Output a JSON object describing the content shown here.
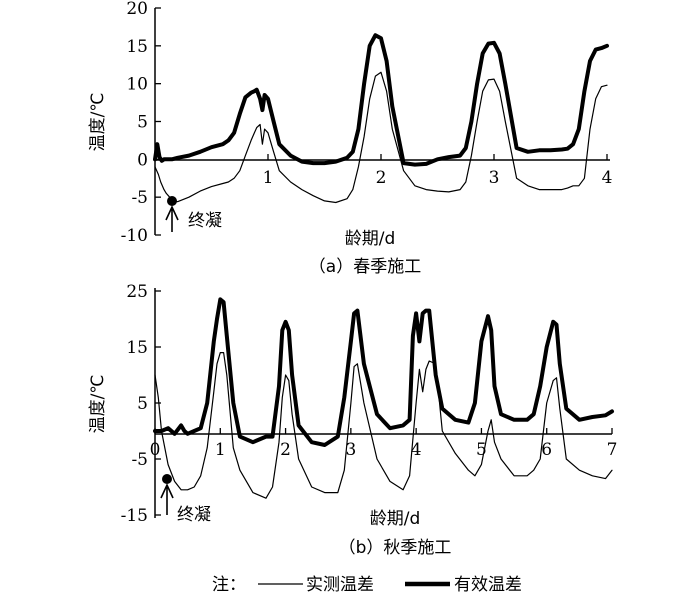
{
  "chart_data": [
    {
      "type": "line",
      "title": "（a）春季施工",
      "xlabel": "龄期/d",
      "ylabel": "温度/℃",
      "xlim": [
        0,
        4
      ],
      "ylim": [
        -10,
        20
      ],
      "x_ticks": [
        "1",
        "2",
        "3",
        "4"
      ],
      "y_ticks": [
        "20",
        "15",
        "10",
        "5",
        "0",
        "-5",
        "-10"
      ],
      "annotation": "终凝",
      "annotation_point": {
        "x": 0.12,
        "y": -5.3
      },
      "series": [
        {
          "name": "实测温差",
          "x": [
            0,
            0.03,
            0.05,
            0.08,
            0.1,
            0.13,
            0.16,
            0.2,
            0.3,
            0.4,
            0.5,
            0.6,
            0.65,
            0.7,
            0.75,
            0.8,
            0.85,
            0.88,
            0.9,
            0.93,
            0.95,
            0.97,
            1.0,
            1.05,
            1.1,
            1.2,
            1.3,
            1.4,
            1.5,
            1.6,
            1.7,
            1.75,
            1.8,
            1.85,
            1.9,
            1.95,
            2.0,
            2.05,
            2.1,
            2.2,
            2.3,
            2.4,
            2.5,
            2.6,
            2.7,
            2.75,
            2.8,
            2.85,
            2.9,
            2.95,
            3.0,
            3.05,
            3.1,
            3.2,
            3.3,
            3.4,
            3.5,
            3.6,
            3.65,
            3.7,
            3.75,
            3.8,
            3.85,
            3.9,
            3.95,
            4.0
          ],
          "y": [
            -1,
            -2,
            -3,
            -4,
            -4.5,
            -5,
            -5.5,
            -5.6,
            -5,
            -4.2,
            -3.6,
            -3.2,
            -3,
            -2.5,
            -1.5,
            0.5,
            2.5,
            3.5,
            4.2,
            4.6,
            2,
            4,
            3.5,
            1,
            -1.5,
            -3,
            -4,
            -4.8,
            -5.5,
            -5.7,
            -5.2,
            -4,
            -1,
            3,
            8,
            11,
            11.5,
            9,
            4,
            -1.5,
            -3.5,
            -4,
            -4.2,
            -4.3,
            -4,
            -3,
            0.5,
            5,
            9,
            10.5,
            10.6,
            9,
            5,
            -2.5,
            -3.5,
            -4,
            -4,
            -4,
            -3.8,
            -3.5,
            -3.5,
            -2.5,
            4,
            8,
            9.6,
            9.8
          ]
        },
        {
          "name": "有效温差",
          "x": [
            0,
            0.02,
            0.04,
            0.06,
            0.08,
            0.1,
            0.15,
            0.2,
            0.3,
            0.4,
            0.5,
            0.6,
            0.65,
            0.7,
            0.75,
            0.8,
            0.85,
            0.88,
            0.9,
            0.93,
            0.95,
            0.97,
            1.0,
            1.05,
            1.1,
            1.2,
            1.3,
            1.4,
            1.5,
            1.6,
            1.7,
            1.75,
            1.8,
            1.85,
            1.9,
            1.95,
            2.0,
            2.05,
            2.1,
            2.2,
            2.3,
            2.4,
            2.5,
            2.6,
            2.7,
            2.75,
            2.8,
            2.85,
            2.9,
            2.95,
            3.0,
            3.05,
            3.1,
            3.2,
            3.3,
            3.4,
            3.5,
            3.6,
            3.65,
            3.7,
            3.75,
            3.8,
            3.85,
            3.9,
            3.95,
            4.0
          ],
          "y": [
            0,
            2,
            0.3,
            -0.2,
            0,
            0,
            0,
            0.2,
            0.5,
            1,
            1.6,
            2,
            2.5,
            3.5,
            6,
            8.2,
            8.8,
            9,
            9.2,
            8,
            6.5,
            8.5,
            8,
            5,
            2,
            0.5,
            -0.3,
            -0.5,
            -0.5,
            -0.3,
            0.2,
            1,
            4,
            10,
            15,
            16.4,
            16,
            13,
            7,
            -0.5,
            -0.7,
            -0.6,
            0,
            0.3,
            0.5,
            1.5,
            5,
            10,
            14,
            15.3,
            15.4,
            14,
            10,
            1.5,
            1,
            1.2,
            1.2,
            1.3,
            1.4,
            2,
            4,
            9,
            13,
            14.5,
            14.7,
            15
          ]
        }
      ]
    },
    {
      "type": "line",
      "title": "（b）秋季施工",
      "xlabel": "龄期/d",
      "ylabel": "温度/℃",
      "xlim": [
        0,
        7
      ],
      "ylim": [
        -15,
        25
      ],
      "x_ticks": [
        "0",
        "1",
        "2",
        "3",
        "4",
        "5",
        "6",
        "7"
      ],
      "y_ticks": [
        "25",
        "15",
        "5",
        "-5",
        "-15"
      ],
      "annotation": "终凝",
      "annotation_point": {
        "x": 0.2,
        "y": -8
      },
      "series": [
        {
          "name": "实测温差",
          "x": [
            0,
            0.05,
            0.1,
            0.2,
            0.3,
            0.4,
            0.5,
            0.6,
            0.7,
            0.8,
            0.9,
            0.95,
            1.0,
            1.05,
            1.1,
            1.2,
            1.3,
            1.5,
            1.7,
            1.8,
            1.9,
            1.95,
            2.0,
            2.05,
            2.1,
            2.2,
            2.4,
            2.6,
            2.8,
            2.9,
            3.0,
            3.05,
            3.1,
            3.2,
            3.4,
            3.6,
            3.8,
            3.9,
            4.0,
            4.05,
            4.1,
            4.15,
            4.2,
            4.3,
            4.4,
            4.6,
            4.8,
            4.9,
            5.0,
            5.1,
            5.15,
            5.2,
            5.3,
            5.5,
            5.7,
            5.8,
            5.9,
            6.0,
            6.1,
            6.15,
            6.2,
            6.3,
            6.5,
            6.7,
            6.9,
            7.0
          ],
          "y": [
            10,
            6,
            0,
            -6,
            -9,
            -10.5,
            -10.5,
            -10,
            -8,
            -3,
            7,
            12,
            14,
            14,
            10,
            -3,
            -7,
            -11,
            -12,
            -10,
            -2,
            6,
            10,
            9,
            3,
            -5,
            -10,
            -11,
            -11,
            -7,
            5,
            11.5,
            12,
            5,
            -5,
            -9,
            -10.5,
            -8,
            5,
            11,
            7,
            11,
            12.5,
            12,
            0,
            -4,
            -7,
            -8,
            -6,
            0,
            2,
            -2,
            -5,
            -8,
            -8,
            -7,
            -5,
            5,
            9,
            9.5,
            4,
            -5,
            -7,
            -8,
            -8.5,
            -7
          ]
        },
        {
          "name": "有效温差",
          "x": [
            0,
            0.1,
            0.2,
            0.3,
            0.4,
            0.45,
            0.5,
            0.6,
            0.7,
            0.8,
            0.9,
            0.95,
            1.0,
            1.05,
            1.1,
            1.2,
            1.3,
            1.5,
            1.7,
            1.8,
            1.9,
            1.95,
            2.0,
            2.05,
            2.1,
            2.2,
            2.4,
            2.6,
            2.8,
            2.9,
            3.0,
            3.05,
            3.1,
            3.2,
            3.4,
            3.6,
            3.8,
            3.9,
            3.95,
            4.0,
            4.05,
            4.1,
            4.15,
            4.2,
            4.3,
            4.4,
            4.6,
            4.8,
            4.9,
            5.0,
            5.1,
            5.15,
            5.2,
            5.3,
            5.5,
            5.7,
            5.8,
            5.9,
            6.0,
            6.1,
            6.15,
            6.2,
            6.3,
            6.5,
            6.7,
            6.9,
            7.0
          ],
          "y": [
            0,
            0,
            0.5,
            -0.5,
            1,
            0,
            -0.5,
            0,
            0.5,
            5,
            16,
            20,
            23.5,
            23,
            17,
            5,
            -1,
            -2,
            -1,
            -1,
            8,
            18,
            19.5,
            18,
            10,
            1,
            -2,
            -2.5,
            -1,
            6,
            16,
            21,
            21.5,
            12,
            3,
            0.5,
            1,
            2,
            17,
            21,
            16,
            21,
            21.5,
            21.5,
            10,
            4,
            2,
            1.5,
            5,
            16,
            20.5,
            18,
            8,
            3,
            2,
            2,
            3,
            8,
            15,
            19.5,
            19,
            12,
            4,
            2,
            2.5,
            2.8,
            3.5
          ]
        }
      ]
    }
  ],
  "legend": {
    "prefix": "注：",
    "items": [
      {
        "label": "实测温差",
        "stroke": "thin"
      },
      {
        "label": "有效温差",
        "stroke": "thick"
      }
    ]
  }
}
